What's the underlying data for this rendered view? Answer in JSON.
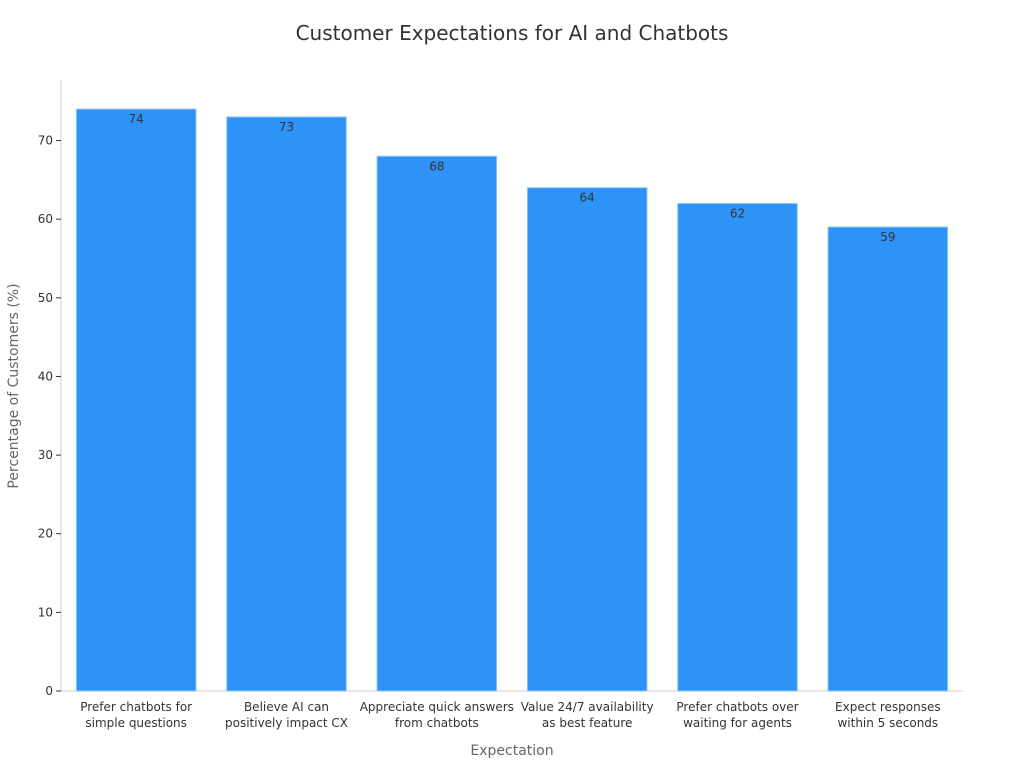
{
  "chart_data": {
    "type": "bar",
    "title": "Customer Expectations for AI and Chatbots",
    "xlabel": "Expectation",
    "ylabel": "Percentage of Customers (%)",
    "categories": [
      [
        "Prefer chatbots for",
        "simple questions"
      ],
      [
        "Believe AI can",
        "positively impact CX"
      ],
      [
        "Appreciate quick answers",
        "from chatbots"
      ],
      [
        "Value 24/7 availability",
        "as best feature"
      ],
      [
        "Prefer chatbots over",
        "waiting for agents"
      ],
      [
        "Expect responses",
        "within 5 seconds"
      ]
    ],
    "values": [
      74,
      73,
      68,
      64,
      62,
      59
    ],
    "ylim": [
      0,
      77.7
    ],
    "yticks": [
      0,
      10,
      20,
      30,
      40,
      50,
      60,
      70
    ],
    "grid": false,
    "colors": {
      "bar": "#2E93F7",
      "bar_edge": "#8EC4F9"
    }
  }
}
